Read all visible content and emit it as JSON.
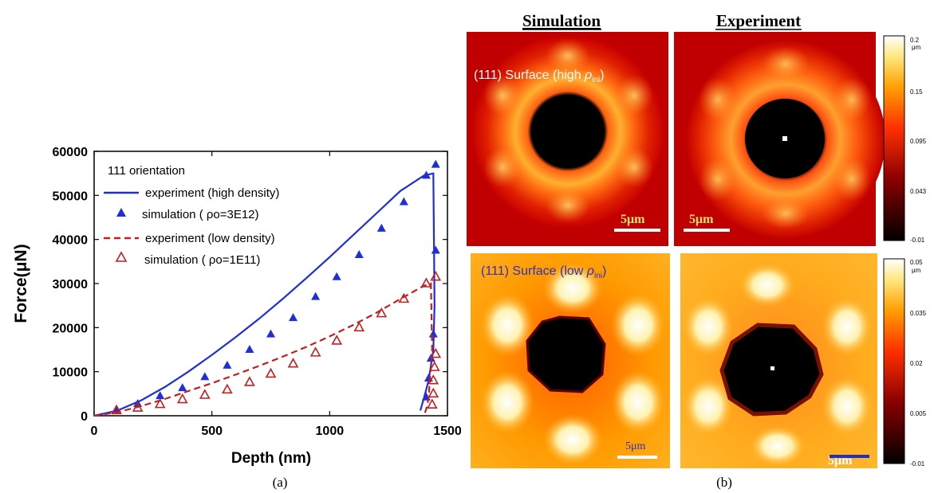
{
  "panel_a": {
    "label": "(a)",
    "chart_data": {
      "type": "line",
      "xlabel": "Depth (nm)",
      "ylabel": "Force(μN)",
      "xlim": [
        0,
        1500
      ],
      "ylim": [
        0,
        60000
      ],
      "x_ticks": [
        0,
        500,
        1000,
        1500
      ],
      "y_ticks": [
        0,
        10000,
        20000,
        30000,
        40000,
        50000,
        60000
      ],
      "legend": {
        "position": "top-left",
        "title": "111 orientation",
        "entries": [
          "experiment (high density)",
          "simulation ( ρo=3E12)",
          "experiment (low density)",
          "simulation ( ρo=1E11)"
        ]
      },
      "series": [
        {
          "name": "experiment (high density)",
          "style": "solid",
          "color": "#1f2fd8",
          "x": [
            0,
            100,
            200,
            300,
            400,
            500,
            600,
            700,
            800,
            900,
            1000,
            1100,
            1200,
            1300,
            1400,
            1440,
            1445,
            1440,
            1420,
            1400,
            1385
          ],
          "y": [
            0,
            1200,
            3500,
            6500,
            10000,
            13800,
            17800,
            22000,
            26500,
            31200,
            36000,
            41000,
            46000,
            51000,
            54500,
            55000,
            25000,
            15000,
            8000,
            4000,
            1200
          ]
        },
        {
          "name": "simulation ( ρo=3E12)",
          "style": "filled-triangle",
          "color": "#1f2fd8",
          "x": [
            95,
            185,
            280,
            375,
            470,
            565,
            660,
            750,
            845,
            940,
            1030,
            1125,
            1220,
            1315,
            1410,
            1450,
            1450,
            1440,
            1430,
            1420,
            1410
          ],
          "y": [
            1400,
            2700,
            4500,
            6300,
            8800,
            11400,
            15000,
            18500,
            22200,
            27000,
            31500,
            36500,
            42500,
            48500,
            54500,
            57000,
            37500,
            18500,
            13000,
            8500,
            4200
          ]
        },
        {
          "name": "experiment (low density)",
          "style": "dashed",
          "color": "#c41e1e",
          "x": [
            0,
            100,
            200,
            300,
            400,
            500,
            600,
            700,
            800,
            900,
            1000,
            1100,
            1200,
            1300,
            1400,
            1430,
            1435,
            1425,
            1420,
            1410,
            1400
          ],
          "y": [
            0,
            800,
            2200,
            3800,
            5600,
            7400,
            9300,
            11300,
            13400,
            15600,
            18000,
            20600,
            23400,
            26500,
            29500,
            30000,
            15000,
            8000,
            4000,
            1500,
            0
          ]
        },
        {
          "name": "simulation ( ρo=1E11)",
          "style": "open-triangle",
          "color": "#c41e1e",
          "x": [
            95,
            185,
            280,
            375,
            470,
            565,
            660,
            750,
            845,
            940,
            1030,
            1125,
            1220,
            1315,
            1410,
            1450,
            1450,
            1445,
            1440,
            1440,
            1435
          ],
          "y": [
            1200,
            1800,
            2600,
            3700,
            4700,
            5900,
            7600,
            9500,
            11800,
            14300,
            17000,
            20000,
            23200,
            26500,
            30000,
            31500,
            14000,
            11000,
            8000,
            5000,
            2500
          ]
        }
      ]
    }
  },
  "panel_b": {
    "label": "(b)",
    "col_header_left": "Simulation",
    "col_header_right": "Experiment",
    "image_top_left_label_prefix": "(111) Surface (high ",
    "image_top_left_label_rho": "ρ",
    "image_top_left_label_sub": "ini",
    "image_top_left_label_suffix": ")",
    "image_bottom_left_label_prefix": "(111) Surface (low ",
    "image_bottom_left_label_rho": "ρ",
    "image_bottom_left_label_sub": "ini",
    "image_bottom_left_label_suffix": ")",
    "scalebar": "5μm",
    "colorbar_top": {
      "unit": "μm",
      "ticks": [
        "0.2",
        "0.15",
        "0.095",
        "0.043",
        "-0.01"
      ]
    },
    "colorbar_bottom": {
      "unit": "μm",
      "ticks": [
        "0.05",
        "0.035",
        "0.02",
        "0.005",
        "-0.01"
      ]
    },
    "colors": {
      "heat_dark": "#000000",
      "heat_red": "#c80000",
      "heat_orange": "#ff8000",
      "heat_yellow": "#fff5a0",
      "heat_white": "#ffffff"
    }
  }
}
